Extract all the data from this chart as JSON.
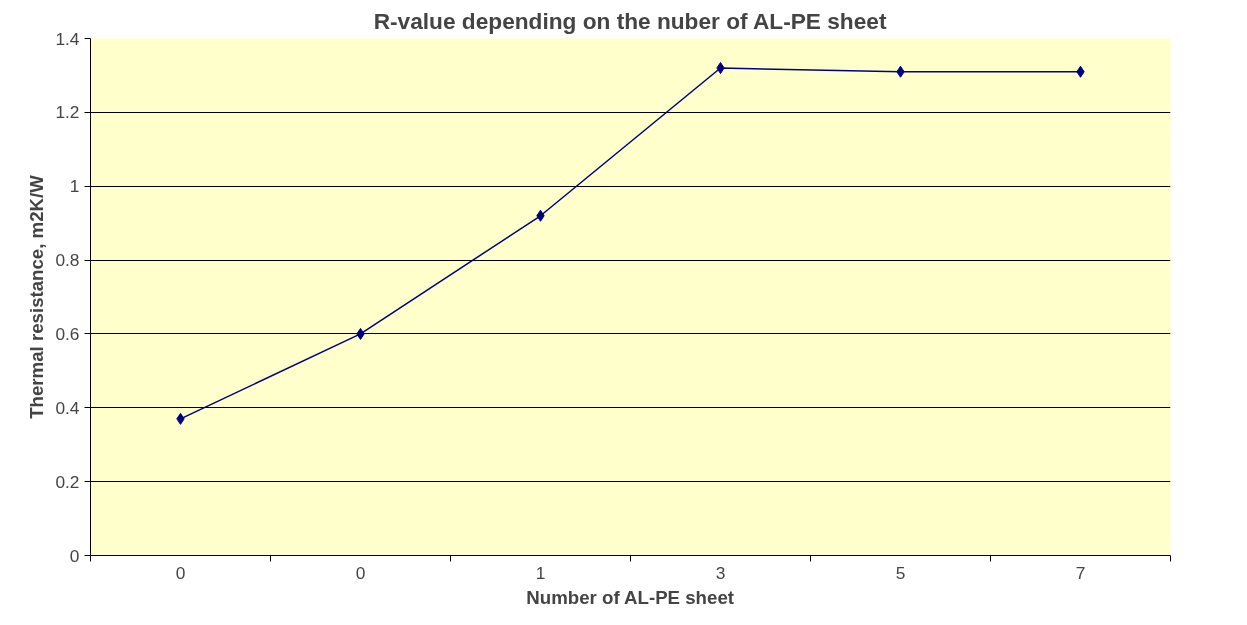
{
  "chart_data": {
    "type": "line",
    "title": "R-value depending on the nuber of AL-PE sheet",
    "xlabel": "Number of AL-PE sheet",
    "ylabel": "Thermal resistance, m2K/W",
    "categories": [
      "0",
      "0",
      "1",
      "3",
      "5",
      "7"
    ],
    "series": [
      {
        "color": "#000080",
        "values": [
          0.37,
          0.6,
          0.92,
          1.32,
          1.31,
          1.31
        ]
      }
    ],
    "ylim": [
      0,
      1.4
    ],
    "yticks": [
      0,
      0.2,
      0.4,
      0.6,
      0.8,
      1,
      1.2,
      1.4
    ],
    "grid": "y",
    "marker": "diamond",
    "line_style": "solid"
  }
}
